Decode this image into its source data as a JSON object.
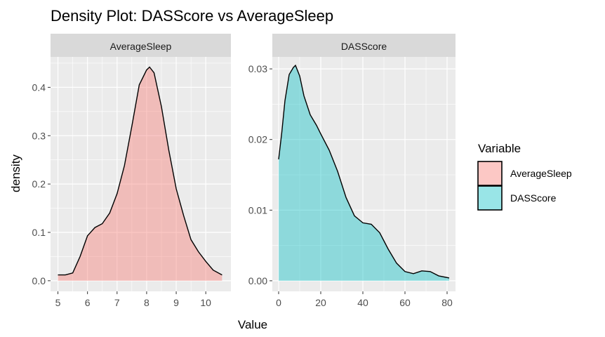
{
  "chart_data": {
    "type": "area",
    "title": "Density Plot: DASScore vs AverageSleep",
    "xlabel": "Value",
    "ylabel": "density",
    "grid": true,
    "legend": {
      "title": "Variable",
      "position": "right",
      "entries": [
        {
          "label": "AverageSleep",
          "color": "#F8766D"
        },
        {
          "label": "DASScore",
          "color": "#00BFC4"
        }
      ]
    },
    "facets": [
      {
        "strip": "AverageSleep",
        "fill": "#F8766D",
        "xlim": [
          4.75,
          10.85
        ],
        "ylim": [
          -0.022,
          0.463
        ],
        "x_ticks": [
          5,
          6,
          7,
          8,
          9,
          10
        ],
        "x_tick_labels": [
          "5",
          "6",
          "7",
          "8",
          "9",
          "10"
        ],
        "y_ticks": [
          0,
          0.1,
          0.2,
          0.3,
          0.4
        ],
        "y_tick_labels": [
          "0.0",
          "0.1",
          "0.2",
          "0.3",
          "0.4"
        ],
        "x": [
          5.0,
          5.25,
          5.5,
          5.75,
          6.0,
          6.25,
          6.5,
          6.75,
          7.0,
          7.25,
          7.5,
          7.75,
          8.0,
          8.1,
          8.25,
          8.5,
          8.75,
          9.0,
          9.25,
          9.5,
          9.75,
          10.0,
          10.25,
          10.55
        ],
        "values": [
          0.012,
          0.012,
          0.016,
          0.05,
          0.093,
          0.11,
          0.118,
          0.14,
          0.18,
          0.238,
          0.32,
          0.405,
          0.436,
          0.442,
          0.43,
          0.36,
          0.27,
          0.19,
          0.135,
          0.085,
          0.06,
          0.04,
          0.022,
          0.012
        ]
      },
      {
        "strip": "DASScore",
        "fill": "#00BFC4",
        "xlim": [
          -3,
          84
        ],
        "ylim": [
          -0.0015,
          0.0317
        ],
        "x_ticks": [
          0,
          20,
          40,
          60,
          80
        ],
        "x_tick_labels": [
          "0",
          "20",
          "40",
          "60",
          "80"
        ],
        "y_ticks": [
          0,
          0.01,
          0.02,
          0.03
        ],
        "y_tick_labels": [
          "0.00",
          "0.01",
          "0.02",
          "0.03"
        ],
        "x": [
          0,
          1.5,
          3,
          5,
          7,
          8,
          10,
          12,
          15,
          18,
          20,
          24,
          28,
          32,
          36,
          40,
          44,
          48,
          52,
          56,
          60,
          64,
          68,
          72,
          76,
          81
        ],
        "values": [
          0.0172,
          0.021,
          0.0255,
          0.0292,
          0.0302,
          0.0305,
          0.029,
          0.0262,
          0.0235,
          0.022,
          0.0208,
          0.0185,
          0.0155,
          0.0118,
          0.0092,
          0.0082,
          0.008,
          0.0068,
          0.0045,
          0.0025,
          0.0013,
          0.001,
          0.0014,
          0.0013,
          0.0007,
          0.0004
        ]
      }
    ]
  }
}
